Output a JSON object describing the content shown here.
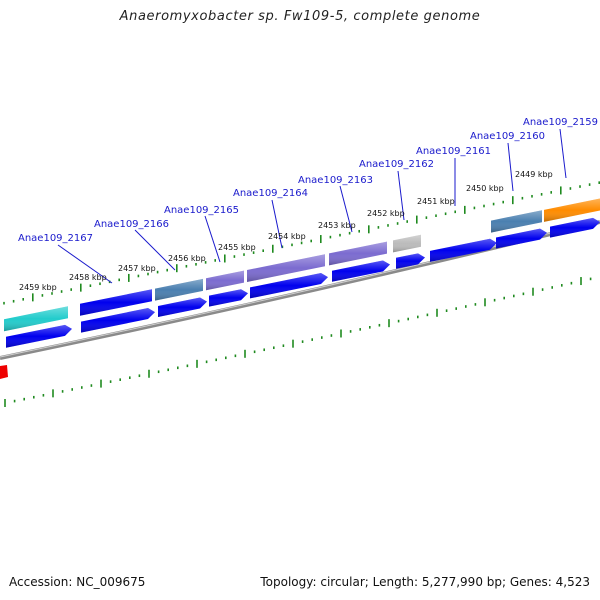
{
  "title": "Anaeromyxobacter sp. Fw109-5, complete genome",
  "footer": {
    "accession": "Accession: NC_009675",
    "topology": "Topology: circular; Length: 5,277,990 bp; Genes: 4,523"
  },
  "colors": {
    "backbone": "#8a8a8a",
    "tick": "#1f8a1f",
    "gene_label": "#1a1acc",
    "cds": "#0000ee",
    "cyan": "#22cccc",
    "steelblue": "#4a7fb0",
    "purple": "#7b6bd0",
    "gray": "#bbbbbb",
    "orange": "#ff8c00",
    "red": "#ee0000"
  },
  "kbp_labels": [
    "2459 kbp",
    "2458 kbp",
    "2457 kbp",
    "2456 kbp",
    "2455 kbp",
    "2454 kbp",
    "2453 kbp",
    "2452 kbp",
    "2451 kbp",
    "2450 kbp",
    "2449 kbp"
  ],
  "gene_labels": [
    "Anae109_2167",
    "Anae109_2166",
    "Anae109_2165",
    "Anae109_2164",
    "Anae109_2163",
    "Anae109_2162",
    "Anae109_2161",
    "Anae109_2160",
    "Anae109_2159"
  ]
}
